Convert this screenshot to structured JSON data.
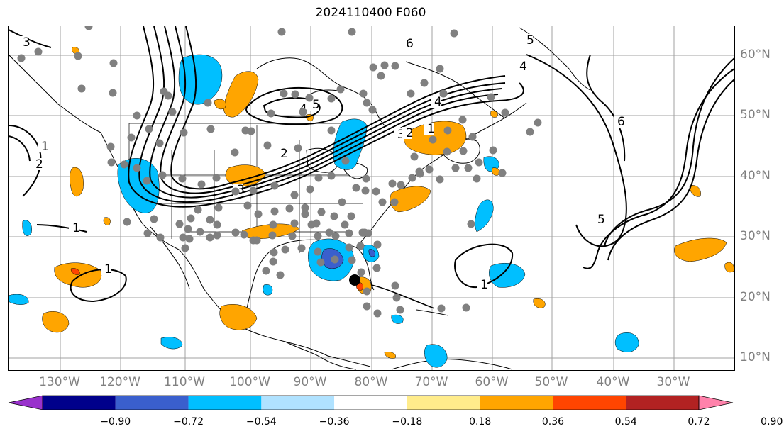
{
  "title": "2024110400 F060",
  "lon_labels": [
    "130°W",
    "120°W",
    "110°W",
    "100°W",
    "90°W",
    "80°W",
    "70°W",
    "60°W",
    "50°W",
    "40°W",
    "30°W"
  ],
  "lat_labels": [
    "60°N",
    "50°N",
    "40°N",
    "30°N",
    "20°N",
    "10°N"
  ],
  "colorbar": {
    "ticks": [
      "−0.90",
      "−0.72",
      "−0.54",
      "−0.36",
      "−0.18",
      "0.18",
      "0.36",
      "0.54",
      "0.72",
      "0.90"
    ],
    "colors": [
      "#9932cc",
      "#00008b",
      "#3a5fcd",
      "#00bfff",
      "#b0e2ff",
      "#ffffff",
      "#ffec8b",
      "#ffa500",
      "#ff4500",
      "#b22222",
      "#ff82ab"
    ]
  },
  "contour_labels": [
    "3",
    "4",
    "5",
    "6",
    "4",
    "3",
    "2",
    "1",
    "2",
    "1",
    "1",
    "1",
    "1",
    "2",
    "3",
    "4",
    "5",
    "6",
    "5"
  ],
  "colors": {
    "contour": "#000000",
    "station": "#808080",
    "grid": "#a0a0a0",
    "coast": "#000000"
  }
}
